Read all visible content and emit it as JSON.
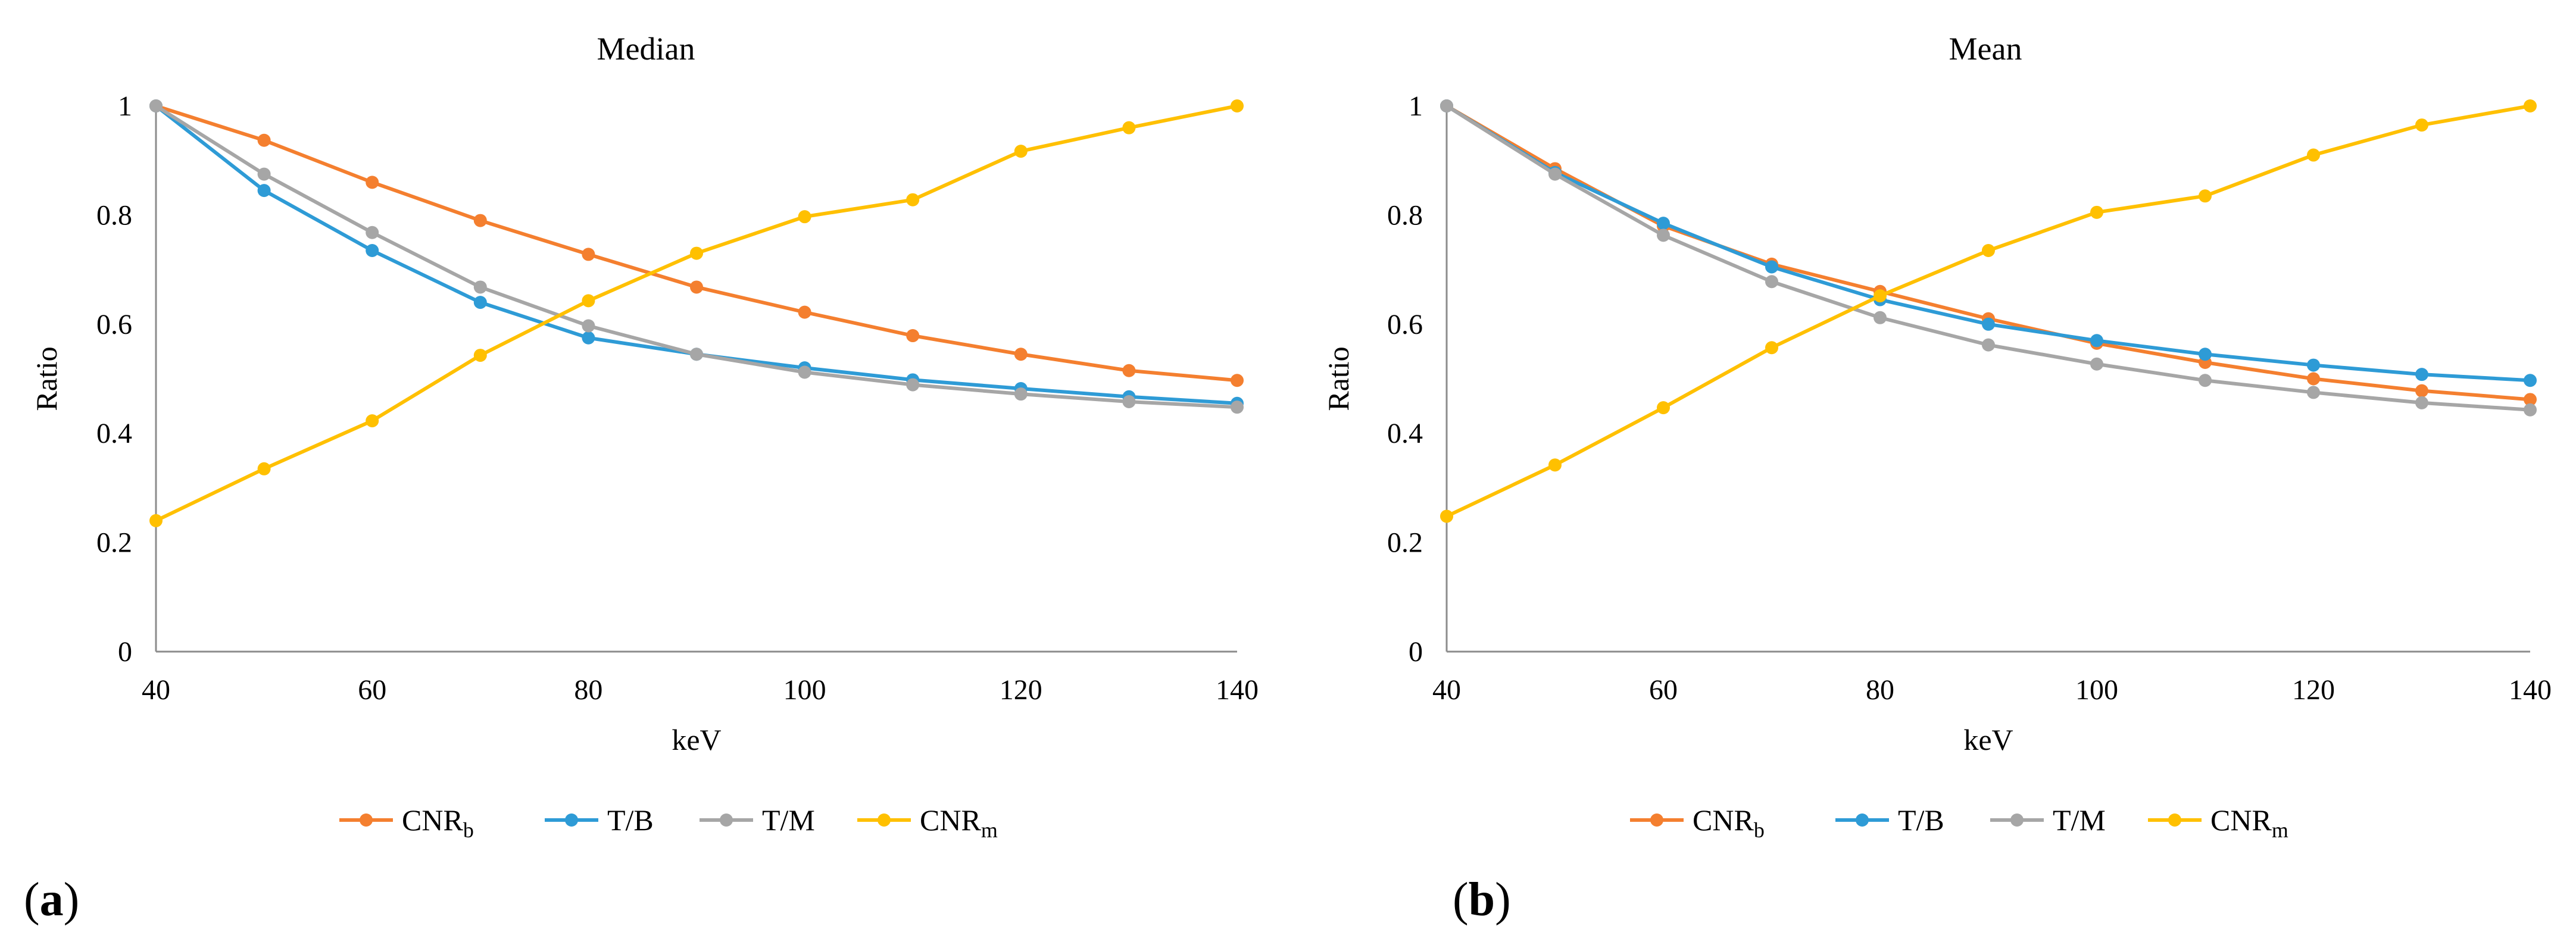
{
  "figure": {
    "panels": [
      "(a)",
      "(b)"
    ]
  },
  "chart_data": [
    {
      "type": "line",
      "panel_label": "(a)",
      "title": "Median",
      "xlabel": "keV",
      "ylabel": "Ratio",
      "x": [
        40,
        50,
        60,
        70,
        80,
        90,
        100,
        110,
        120,
        130,
        140
      ],
      "xlim": [
        40,
        140
      ],
      "xticks": [
        "40",
        "60",
        "80",
        "100",
        "120",
        "140"
      ],
      "xtick_values": [
        40,
        60,
        80,
        100,
        120,
        140
      ],
      "ylim": [
        0,
        1
      ],
      "yticks": [
        "0",
        "0.2",
        "0.4",
        "0.6",
        "0.8",
        "1"
      ],
      "ytick_values": [
        0,
        0.2,
        0.4,
        0.6,
        0.8,
        1
      ],
      "legend_position": "bottom",
      "series": [
        {
          "name": "CNRb",
          "label_main": "CNR",
          "label_sub": "b",
          "color": "#F47F2F",
          "values": [
            1.0,
            0.937,
            0.86,
            0.79,
            0.728,
            0.668,
            0.622,
            0.579,
            0.545,
            0.515,
            0.497
          ]
        },
        {
          "name": "T/B",
          "label_main": "T/B",
          "label_sub": "",
          "color": "#2E9BD6",
          "values": [
            1.0,
            0.845,
            0.735,
            0.64,
            0.575,
            0.545,
            0.52,
            0.498,
            0.482,
            0.467,
            0.455
          ]
        },
        {
          "name": "T/M",
          "label_main": "T/M",
          "label_sub": "",
          "color": "#A6A6A6",
          "values": [
            1.0,
            0.875,
            0.768,
            0.668,
            0.597,
            0.545,
            0.512,
            0.489,
            0.472,
            0.458,
            0.448
          ]
        },
        {
          "name": "CNRm",
          "label_main": "CNR",
          "label_sub": "m",
          "color": "#FFC000",
          "values": [
            0.24,
            0.335,
            0.423,
            0.543,
            0.643,
            0.73,
            0.797,
            0.828,
            0.917,
            0.96,
            1.0
          ]
        }
      ]
    },
    {
      "type": "line",
      "panel_label": "(b)",
      "title": "Mean",
      "xlabel": "keV",
      "ylabel": "Ratio",
      "x": [
        40,
        50,
        60,
        70,
        80,
        90,
        100,
        110,
        120,
        130,
        140
      ],
      "xlim": [
        40,
        140
      ],
      "xticks": [
        "40",
        "60",
        "80",
        "100",
        "120",
        "140"
      ],
      "xtick_values": [
        40,
        60,
        80,
        100,
        120,
        140
      ],
      "ylim": [
        0,
        1
      ],
      "yticks": [
        "0",
        "0.2",
        "0.4",
        "0.6",
        "0.8",
        "1"
      ],
      "ytick_values": [
        0,
        0.2,
        0.4,
        0.6,
        0.8,
        1
      ],
      "legend_position": "bottom",
      "series": [
        {
          "name": "CNRb",
          "label_main": "CNR",
          "label_sub": "b",
          "color": "#F47F2F",
          "values": [
            1.0,
            0.885,
            0.78,
            0.71,
            0.66,
            0.61,
            0.565,
            0.53,
            0.5,
            0.478,
            0.462
          ]
        },
        {
          "name": "T/B",
          "label_main": "T/B",
          "label_sub": "",
          "color": "#2E9BD6",
          "values": [
            1.0,
            0.878,
            0.785,
            0.705,
            0.645,
            0.6,
            0.57,
            0.545,
            0.525,
            0.508,
            0.497
          ]
        },
        {
          "name": "T/M",
          "label_main": "T/M",
          "label_sub": "",
          "color": "#A6A6A6",
          "values": [
            1.0,
            0.875,
            0.763,
            0.678,
            0.612,
            0.562,
            0.527,
            0.497,
            0.475,
            0.456,
            0.443
          ]
        },
        {
          "name": "CNRm",
          "label_main": "CNR",
          "label_sub": "m",
          "color": "#FFC000",
          "values": [
            0.248,
            0.342,
            0.447,
            0.557,
            0.652,
            0.735,
            0.805,
            0.835,
            0.91,
            0.965,
            1.0
          ]
        }
      ]
    }
  ]
}
